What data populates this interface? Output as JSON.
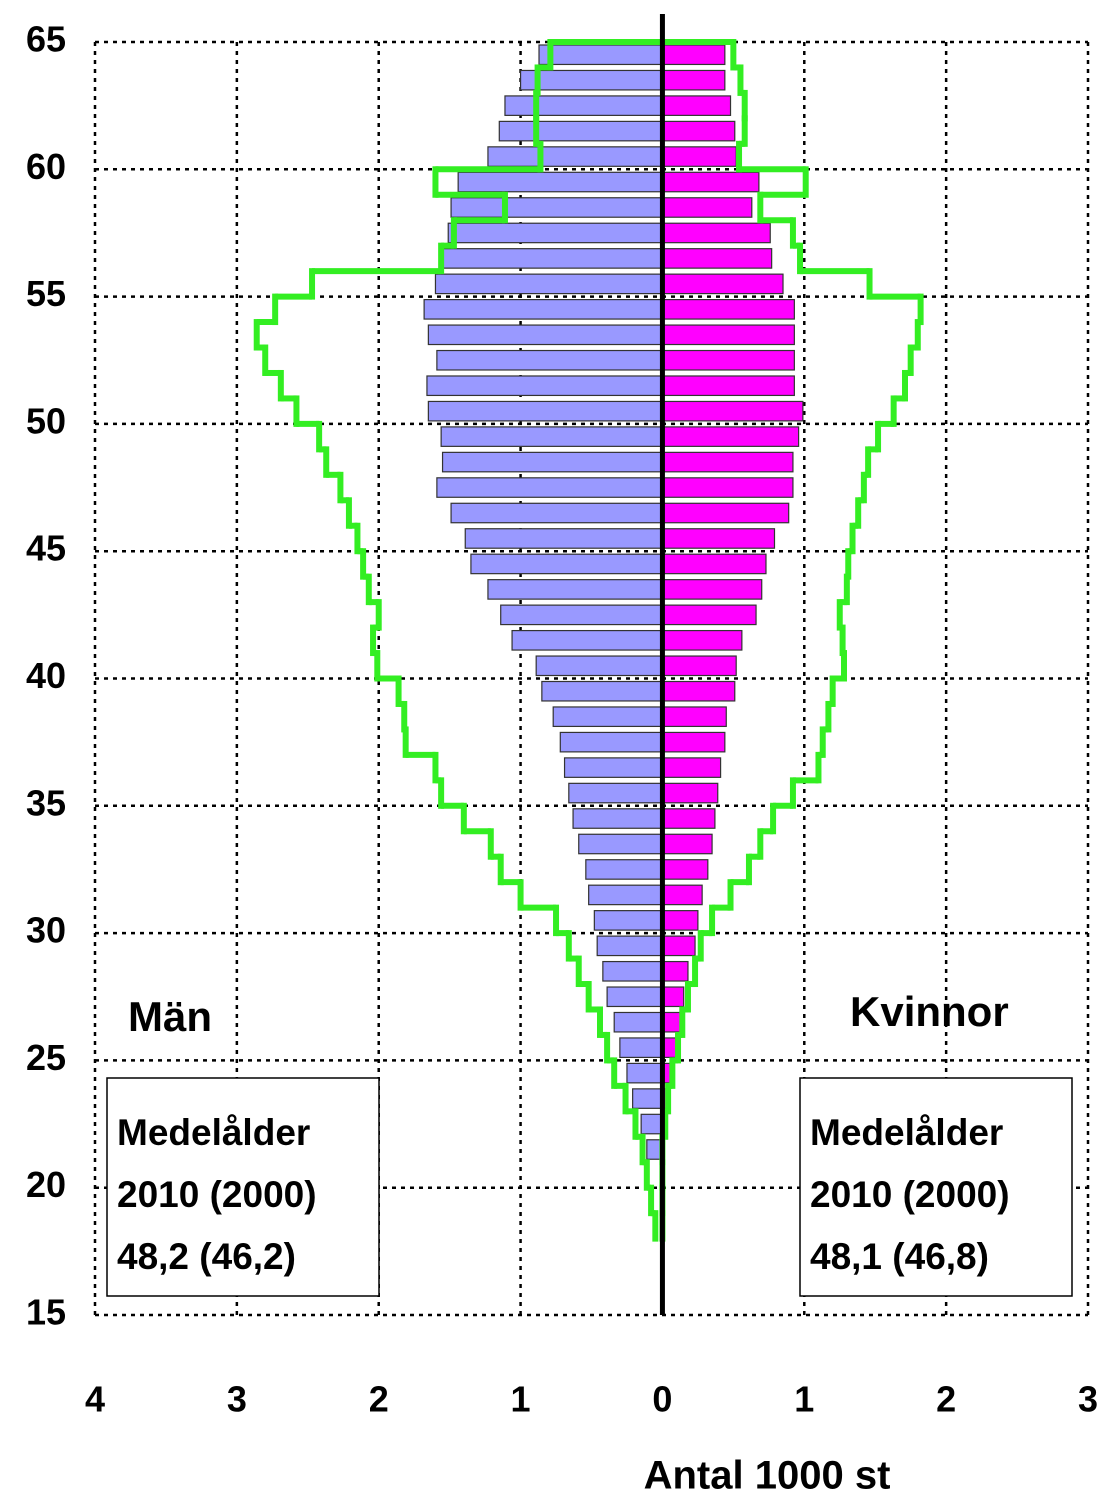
{
  "chart_data": {
    "type": "pyramid",
    "x_label": "Antal 1000 st",
    "left_label": "Män",
    "right_label": "Kvinnor",
    "xlim": [
      -4,
      3
    ],
    "xticks": [
      {
        "value": -4,
        "label": "4"
      },
      {
        "value": -3,
        "label": "3"
      },
      {
        "value": -2,
        "label": "2"
      },
      {
        "value": -1,
        "label": "1"
      },
      0,
      1,
      2,
      3
    ],
    "ylim": [
      15,
      65
    ],
    "yticks": [
      15,
      20,
      25,
      30,
      35,
      40,
      45,
      50,
      55,
      60,
      65
    ],
    "grid": true,
    "ages": [
      64,
      63,
      62,
      61,
      60,
      59,
      58,
      57,
      56,
      55,
      54,
      53,
      52,
      51,
      50,
      49,
      48,
      47,
      46,
      45,
      44,
      43,
      42,
      41,
      40,
      39,
      38,
      37,
      36,
      35,
      34,
      33,
      32,
      31,
      30,
      29,
      28,
      27,
      26,
      25,
      24,
      23,
      22,
      21,
      20,
      19,
      18
    ],
    "series": [
      {
        "side": "left",
        "style": "bar",
        "color": "#9999ff",
        "values": [
          0.87,
          1.0,
          1.11,
          1.15,
          1.23,
          1.44,
          1.49,
          1.51,
          1.56,
          1.6,
          1.68,
          1.65,
          1.59,
          1.66,
          1.65,
          1.56,
          1.55,
          1.59,
          1.49,
          1.39,
          1.35,
          1.23,
          1.14,
          1.06,
          0.89,
          0.85,
          0.77,
          0.72,
          0.69,
          0.66,
          0.63,
          0.59,
          0.54,
          0.52,
          0.48,
          0.46,
          0.42,
          0.39,
          0.34,
          0.3,
          0.25,
          0.21,
          0.15,
          0.11,
          null,
          null,
          null
        ]
      },
      {
        "side": "right",
        "style": "bar",
        "color": "#ff00ff",
        "values": [
          0.44,
          0.44,
          0.48,
          0.51,
          0.52,
          0.68,
          0.63,
          0.76,
          0.77,
          0.85,
          0.93,
          0.93,
          0.93,
          0.93,
          0.99,
          0.96,
          0.92,
          0.92,
          0.89,
          0.79,
          0.73,
          0.7,
          0.66,
          0.56,
          0.52,
          0.51,
          0.45,
          0.44,
          0.41,
          0.39,
          0.37,
          0.35,
          0.32,
          0.28,
          0.25,
          0.23,
          0.18,
          0.15,
          0.13,
          0.11,
          0.06,
          0.04,
          0.02,
          0.01,
          null,
          null,
          null
        ]
      },
      {
        "side": "left",
        "style": "step",
        "color": "#33ee22",
        "values": [
          0.79,
          0.88,
          0.89,
          0.89,
          0.86,
          1.6,
          1.11,
          1.47,
          1.56,
          2.47,
          2.73,
          2.86,
          2.8,
          2.69,
          2.58,
          2.42,
          2.37,
          2.27,
          2.21,
          2.15,
          2.11,
          2.07,
          2.0,
          2.04,
          2.01,
          1.86,
          1.82,
          1.81,
          1.6,
          1.56,
          1.4,
          1.21,
          1.14,
          1.0,
          0.75,
          0.66,
          0.59,
          0.52,
          0.44,
          0.39,
          0.34,
          0.26,
          0.19,
          0.14,
          0.11,
          0.08,
          0.05
        ]
      },
      {
        "side": "right",
        "style": "step",
        "color": "#33ee22",
        "values": [
          0.5,
          0.55,
          0.58,
          0.58,
          0.54,
          1.01,
          0.69,
          0.92,
          0.97,
          1.46,
          1.82,
          1.8,
          1.75,
          1.71,
          1.63,
          1.52,
          1.45,
          1.42,
          1.38,
          1.34,
          1.31,
          1.3,
          1.25,
          1.27,
          1.28,
          1.2,
          1.17,
          1.13,
          1.1,
          0.92,
          0.78,
          0.69,
          0.61,
          0.48,
          0.35,
          0.27,
          0.23,
          0.18,
          0.14,
          0.11,
          0.07,
          0.04,
          0.02,
          0,
          0,
          0,
          0
        ]
      }
    ],
    "annotations": [
      {
        "side": "left",
        "lines": [
          "Medelålder",
          "2010 (2000)",
          "48,2 (46,2)"
        ]
      },
      {
        "side": "right",
        "lines": [
          "Medelålder",
          "2010 (2000)",
          "48,1 (46,8)"
        ]
      }
    ]
  }
}
